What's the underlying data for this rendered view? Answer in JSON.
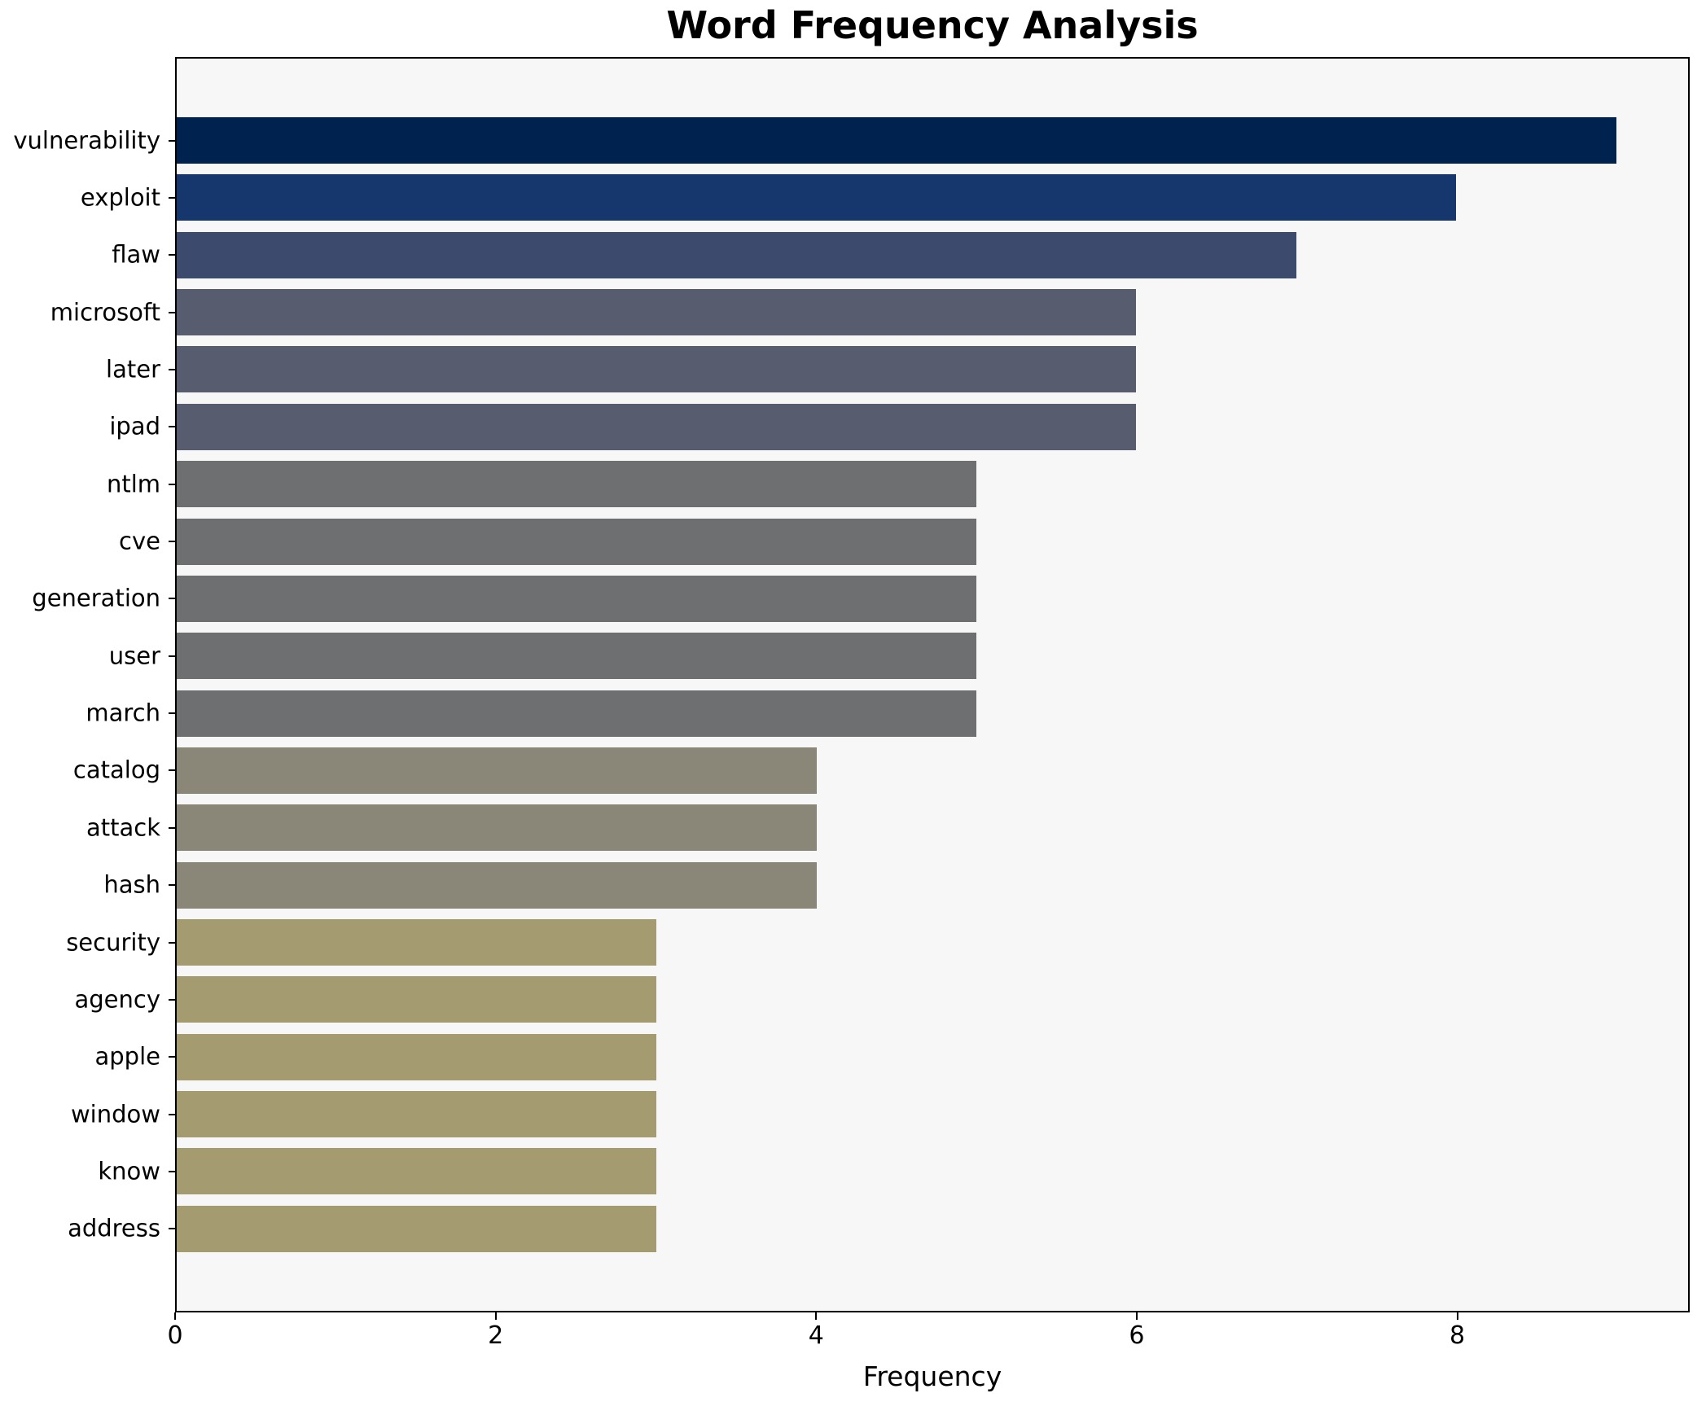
{
  "chart_data": {
    "type": "bar",
    "orientation": "horizontal",
    "title": "Word Frequency Analysis",
    "xlabel": "Frequency",
    "categories": [
      "vulnerability",
      "exploit",
      "flaw",
      "microsoft",
      "later",
      "ipad",
      "ntlm",
      "cve",
      "generation",
      "user",
      "march",
      "catalog",
      "attack",
      "hash",
      "security",
      "agency",
      "apple",
      "window",
      "know",
      "address"
    ],
    "values": [
      9,
      8,
      7,
      6,
      6,
      6,
      5,
      5,
      5,
      5,
      5,
      4,
      4,
      4,
      3,
      3,
      3,
      3,
      3,
      3
    ],
    "bar_colors": [
      "#00224e",
      "#15376e",
      "#3c4a6d",
      "#575d6e",
      "#575d6e",
      "#575d6e",
      "#6e6f70",
      "#6e6f70",
      "#6e6f70",
      "#6e6f70",
      "#6e6f70",
      "#8a8779",
      "#8a8779",
      "#8a8779",
      "#a49b70",
      "#a49b70",
      "#a49b70",
      "#a49b70",
      "#a49b70",
      "#a49b70"
    ],
    "xticks": [
      0,
      2,
      4,
      6,
      8
    ],
    "xlim": [
      0,
      9.45
    ],
    "grid": false,
    "legend_position": "none",
    "plot_background": "#f7f7f7",
    "figure_background": "#ffffff",
    "spine_color": "#000000"
  }
}
